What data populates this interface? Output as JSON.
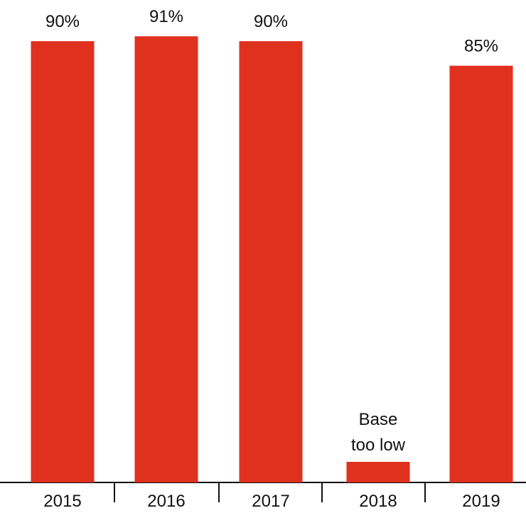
{
  "chart_data": {
    "type": "bar",
    "categories": [
      "2015",
      "2016",
      "2017",
      "2018",
      "2019"
    ],
    "values": [
      90,
      91,
      90,
      null,
      85
    ],
    "data_labels": [
      "90%",
      "91%",
      "90%",
      "",
      "85%"
    ],
    "notes": {
      "2018": [
        "Base",
        "too low"
      ]
    },
    "title": "",
    "xlabel": "",
    "ylabel": "",
    "ylim": [
      0,
      100
    ],
    "grid": false,
    "legend": "none",
    "colors": {
      "bar": "#E0301E",
      "axis": "#111111",
      "text": "#111111"
    }
  }
}
